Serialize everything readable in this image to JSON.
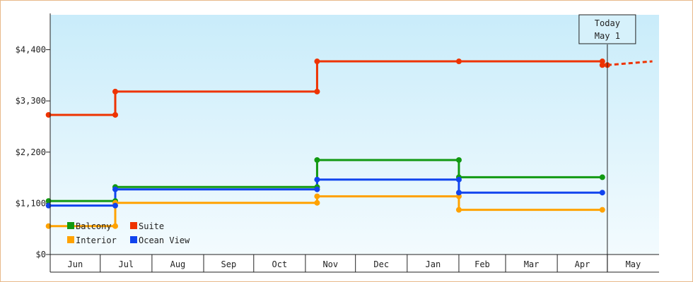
{
  "chart_data": {
    "type": "line",
    "step": true,
    "title": "",
    "xlabel": "",
    "ylabel": "",
    "y_tick_labels": [
      "$0",
      "$1,100",
      "$2,200",
      "$3,300",
      "$4,400"
    ],
    "y_ticks": [
      0,
      1100,
      2200,
      3300,
      4400
    ],
    "ylim": [
      0,
      5150
    ],
    "x_start": "2014-06-01",
    "x_end": "2015-05-31",
    "months": [
      {
        "label": "Jun",
        "start": "2014-06-01"
      },
      {
        "label": "Jul",
        "start": "2014-07-01"
      },
      {
        "label": "Aug",
        "start": "2014-08-01"
      },
      {
        "label": "Sep",
        "start": "2014-09-01"
      },
      {
        "label": "Oct",
        "start": "2014-10-01"
      },
      {
        "label": "Nov",
        "start": "2014-11-01"
      },
      {
        "label": "Dec",
        "start": "2014-12-01"
      },
      {
        "label": "Jan",
        "start": "2015-01-01"
      },
      {
        "label": "Feb",
        "start": "2015-02-01"
      },
      {
        "label": "Mar",
        "start": "2015-03-01"
      },
      {
        "label": "Apr",
        "start": "2015-04-01"
      },
      {
        "label": "May",
        "start": "2015-05-01"
      }
    ],
    "today": {
      "line1": "Today",
      "line2": "May 1",
      "date": "2015-05-01"
    },
    "grid": false,
    "legend_position": "bottom-left",
    "series": [
      {
        "name": "Balcony",
        "color": "#119911",
        "points": [
          {
            "x": "2014-05-31",
            "y": 1150
          },
          {
            "x": "2014-07-10",
            "y": 1150
          },
          {
            "x": "2014-07-10",
            "y": 1450
          },
          {
            "x": "2014-11-08",
            "y": 1450
          },
          {
            "x": "2014-11-08",
            "y": 2030
          },
          {
            "x": "2015-02-01",
            "y": 2030
          },
          {
            "x": "2015-02-01",
            "y": 1660
          },
          {
            "x": "2015-04-28",
            "y": 1660
          }
        ]
      },
      {
        "name": "Suite",
        "color": "#ee3300",
        "points": [
          {
            "x": "2014-05-31",
            "y": 3000
          },
          {
            "x": "2014-07-10",
            "y": 3000
          },
          {
            "x": "2014-07-10",
            "y": 3500
          },
          {
            "x": "2014-11-08",
            "y": 3500
          },
          {
            "x": "2014-11-08",
            "y": 4150
          },
          {
            "x": "2015-02-01",
            "y": 4150
          },
          {
            "x": "2015-04-28",
            "y": 4150
          },
          {
            "x": "2015-04-28",
            "y": 4070
          },
          {
            "x": "2015-05-01",
            "y": 4070
          }
        ],
        "projection": [
          {
            "x": "2015-05-01",
            "y": 4070
          },
          {
            "x": "2015-05-28",
            "y": 4150
          }
        ]
      },
      {
        "name": "Interior",
        "color": "#ffa200",
        "points": [
          {
            "x": "2014-05-31",
            "y": 610
          },
          {
            "x": "2014-07-10",
            "y": 610
          },
          {
            "x": "2014-07-10",
            "y": 1110
          },
          {
            "x": "2014-11-08",
            "y": 1110
          },
          {
            "x": "2014-11-08",
            "y": 1250
          },
          {
            "x": "2015-02-01",
            "y": 1250
          },
          {
            "x": "2015-02-01",
            "y": 960
          },
          {
            "x": "2015-04-28",
            "y": 960
          }
        ]
      },
      {
        "name": "Ocean View",
        "color": "#1144ee",
        "points": [
          {
            "x": "2014-05-31",
            "y": 1050
          },
          {
            "x": "2014-07-10",
            "y": 1050
          },
          {
            "x": "2014-07-10",
            "y": 1400
          },
          {
            "x": "2014-11-08",
            "y": 1400
          },
          {
            "x": "2014-11-08",
            "y": 1610
          },
          {
            "x": "2015-02-01",
            "y": 1610
          },
          {
            "x": "2015-02-01",
            "y": 1330
          },
          {
            "x": "2015-04-28",
            "y": 1330
          }
        ]
      }
    ]
  }
}
